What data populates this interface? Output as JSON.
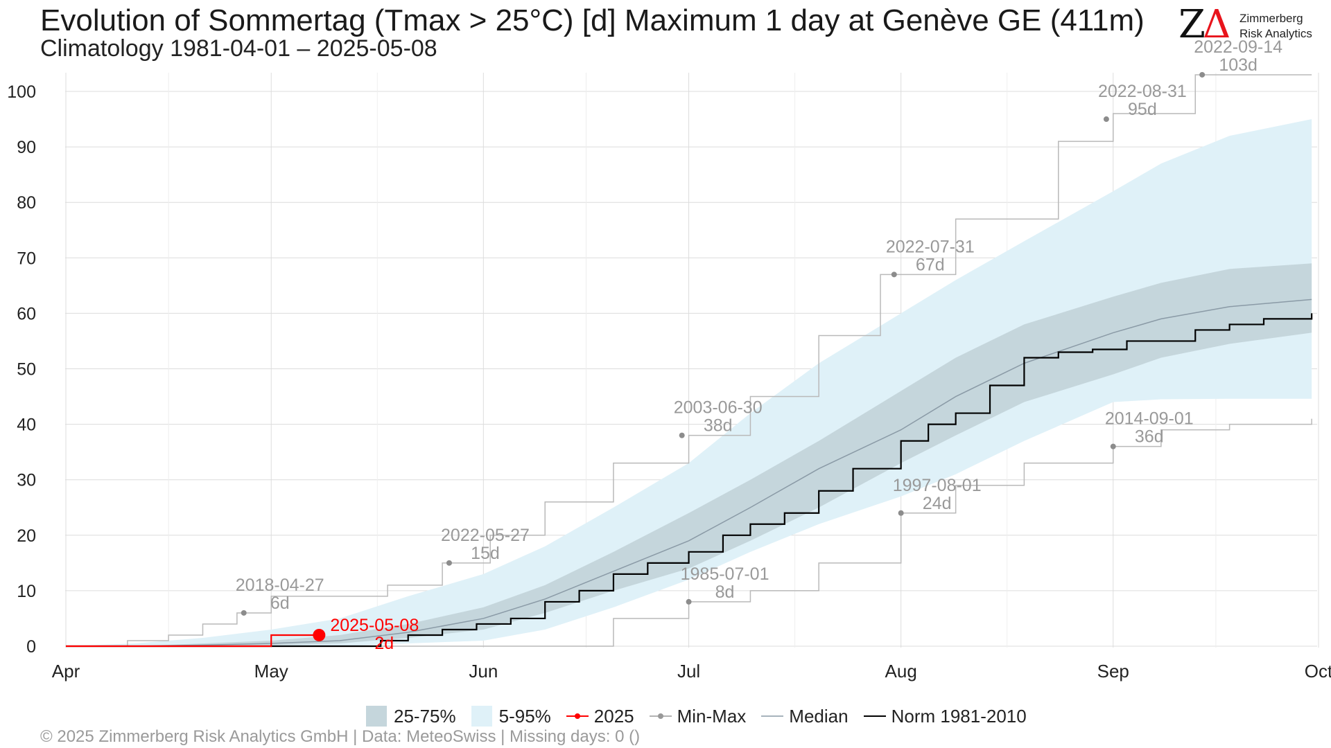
{
  "header": {
    "title": "Evolution of Sommertag (Tmax > 25°C) [d] Maximum 1 day at Genève  GE (411m)",
    "subtitle": "Climatology 1981-04-01 – 2025-05-08"
  },
  "logo": {
    "mark": "ZΔ",
    "line1": "Zimmerberg",
    "line2": "Risk Analytics"
  },
  "footer": "©  2025 Zimmerberg Risk Analytics GmbH | Data: MeteoSwiss | Missing days: 0 ()",
  "colors": {
    "iqr": "#c5d6dc",
    "p5_95": "#dff1f8",
    "year": "#ff0000",
    "minmax": "#999999",
    "median": "#8a9aa6",
    "norm": "#000000",
    "grid": "#dcdcdc",
    "annotation": "#999999"
  },
  "legend": [
    {
      "key": "iqr",
      "label": "25-75%"
    },
    {
      "key": "p5_95",
      "label": "5-95%"
    },
    {
      "key": "year",
      "label": "2025"
    },
    {
      "key": "minmax",
      "label": "Min-Max"
    },
    {
      "key": "median",
      "label": "Median"
    },
    {
      "key": "norm",
      "label": "Norm 1981-2010"
    }
  ],
  "chart_data": {
    "type": "line",
    "x_unit": "day of season (0 = 1 Apr)",
    "xlim": [
      0,
      183
    ],
    "ylim": [
      0,
      103
    ],
    "yticks": [
      0,
      10,
      20,
      30,
      40,
      50,
      60,
      70,
      80,
      90,
      100
    ],
    "xticks": [
      {
        "x": 0,
        "label": "Apr"
      },
      {
        "x": 30,
        "label": "May"
      },
      {
        "x": 61,
        "label": "Jun"
      },
      {
        "x": 91,
        "label": "Jul"
      },
      {
        "x": 122,
        "label": "Aug"
      },
      {
        "x": 153,
        "label": "Sep"
      },
      {
        "x": 183,
        "label": "Oct"
      }
    ],
    "grid": true,
    "legend_position": "bottom",
    "bands": {
      "x": [
        0,
        10,
        20,
        30,
        40,
        50,
        61,
        70,
        80,
        91,
        100,
        110,
        122,
        130,
        140,
        153,
        160,
        170,
        182
      ],
      "p5": [
        0,
        0,
        0,
        0,
        0,
        0.5,
        1,
        3,
        7,
        12,
        17,
        22,
        27,
        31,
        37,
        44,
        44.5,
        44.6,
        44.6
      ],
      "p95": [
        0,
        0.5,
        1.5,
        3,
        5,
        9,
        13,
        18,
        25,
        33,
        42,
        51,
        60,
        66,
        73,
        82,
        87,
        92,
        95
      ],
      "p25": [
        0,
        0,
        0,
        0.2,
        0.5,
        1.5,
        3,
        6,
        10,
        14,
        19,
        25,
        33,
        38,
        44,
        49,
        52,
        54.5,
        56.5
      ],
      "p75": [
        0,
        0,
        0.5,
        1,
        2,
        4,
        7,
        11,
        17,
        24,
        30,
        37,
        46,
        52,
        58,
        63,
        65.5,
        68,
        69
      ]
    },
    "series": [
      {
        "name": "Median",
        "x": [
          0,
          10,
          20,
          30,
          40,
          50,
          61,
          70,
          80,
          91,
          100,
          110,
          122,
          130,
          140,
          153,
          160,
          170,
          182
        ],
        "y": [
          0,
          0,
          0.2,
          0.5,
          1,
          2.5,
          5,
          8.5,
          13.5,
          19,
          25,
          32,
          39,
          45,
          51,
          56.5,
          59,
          61.2,
          62.5
        ]
      },
      {
        "name": "Norm 1981-2010",
        "x": [
          0,
          45,
          46,
          50,
          55,
          60,
          65,
          70,
          75,
          80,
          85,
          91,
          96,
          100,
          105,
          110,
          115,
          122,
          126,
          130,
          135,
          140,
          145,
          150,
          155,
          160,
          165,
          170,
          175,
          182
        ],
        "y": [
          0,
          0,
          1,
          2,
          3,
          4,
          5,
          8,
          10,
          13,
          15,
          17,
          20,
          22,
          24,
          28,
          32,
          37,
          40,
          42,
          47,
          52,
          53,
          53.5,
          55,
          55,
          57,
          58,
          59,
          60
        ]
      },
      {
        "name": "2025",
        "x": [
          0,
          29,
          30,
          36,
          37
        ],
        "y": [
          0,
          0,
          2,
          2,
          2
        ]
      },
      {
        "name": "Max",
        "x": [
          0,
          9,
          15,
          20,
          25,
          30,
          40,
          47,
          55,
          62,
          70,
          80,
          91,
          100,
          110,
          119,
          130,
          145,
          153,
          165,
          170,
          182
        ],
        "y": [
          0,
          1,
          2,
          4,
          6,
          9,
          9,
          11,
          15,
          20,
          26,
          33,
          38,
          45,
          56,
          67,
          77,
          91,
          96,
          103,
          103,
          103
        ]
      },
      {
        "name": "Min",
        "x": [
          0,
          71,
          80,
          91,
          100,
          110,
          122,
          130,
          140,
          153,
          160,
          170,
          182
        ],
        "y": [
          0,
          0,
          5,
          8,
          10,
          15,
          24,
          29,
          33,
          36,
          39,
          40,
          41
        ]
      }
    ],
    "annotations": [
      {
        "date": "2018-04-27",
        "value": "6d",
        "x": 26,
        "y": 6,
        "color": "minmax"
      },
      {
        "date": "2022-05-27",
        "value": "15d",
        "x": 56,
        "y": 15,
        "color": "minmax"
      },
      {
        "date": "2003-06-30",
        "value": "38d",
        "x": 90,
        "y": 38,
        "color": "minmax"
      },
      {
        "date": "2022-07-31",
        "value": "67d",
        "x": 121,
        "y": 67,
        "color": "minmax"
      },
      {
        "date": "2022-08-31",
        "value": "95d",
        "x": 152,
        "y": 95,
        "color": "minmax"
      },
      {
        "date": "2022-09-14",
        "value": "103d",
        "x": 166,
        "y": 103,
        "color": "minmax"
      },
      {
        "date": "1985-07-01",
        "value": "8d",
        "x": 91,
        "y": 8,
        "color": "minmax"
      },
      {
        "date": "1997-08-01",
        "value": "24d",
        "x": 122,
        "y": 24,
        "color": "minmax"
      },
      {
        "date": "2014-09-01",
        "value": "36d",
        "x": 153,
        "y": 36,
        "color": "minmax"
      },
      {
        "date": "2025-05-08",
        "value": "2d",
        "x": 37,
        "y": 2,
        "color": "year"
      }
    ]
  }
}
